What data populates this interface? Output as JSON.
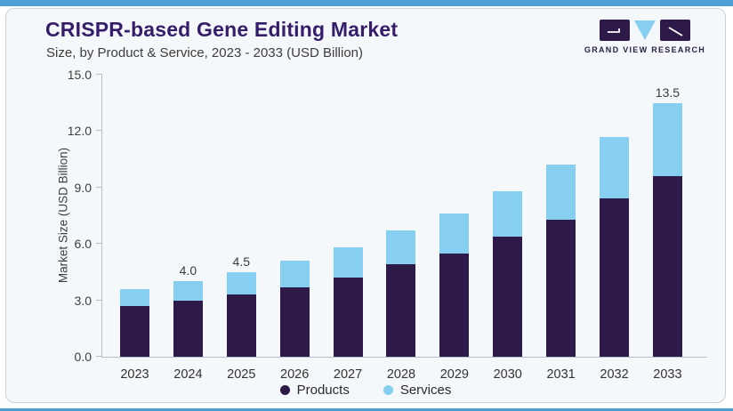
{
  "frame": {
    "accent_color": "#4E9FD3",
    "card_bg": "#F4F8FB",
    "card_border": "#C9D2DB"
  },
  "header": {
    "title": "CRISPR-based Gene Editing Market",
    "subtitle": "Size, by Product & Service, 2023 - 2033 (USD Billion)",
    "title_color": "#351D6B",
    "logo_text": "GRAND VIEW RESEARCH"
  },
  "chart_data": {
    "type": "bar",
    "stacked": true,
    "title": "CRISPR-based Gene Editing Market",
    "subtitle": "Size, by Product & Service, 2023 - 2033 (USD Billion)",
    "categories": [
      "2023",
      "2024",
      "2025",
      "2026",
      "2027",
      "2028",
      "2029",
      "2030",
      "2031",
      "2032",
      "2033"
    ],
    "series": [
      {
        "name": "Products",
        "color": "#2E1A48",
        "values": [
          2.7,
          3.0,
          3.3,
          3.7,
          4.2,
          4.9,
          5.5,
          6.4,
          7.3,
          8.4,
          9.6
        ]
      },
      {
        "name": "Services",
        "color": "#87CFF0",
        "values": [
          0.9,
          1.0,
          1.2,
          1.4,
          1.6,
          1.8,
          2.1,
          2.4,
          2.9,
          3.3,
          3.9
        ]
      }
    ],
    "totals": [
      3.6,
      4.0,
      4.5,
      5.1,
      5.8,
      6.7,
      7.6,
      8.8,
      10.2,
      11.7,
      13.5
    ],
    "bar_labels": [
      "",
      "4.0",
      "4.5",
      "",
      "",
      "",
      "",
      "",
      "",
      "",
      "13.5"
    ],
    "xlabel": "",
    "ylabel": "Market Size (USD Billion)",
    "yticks": [
      "0.0",
      "3.0",
      "6.0",
      "9.0",
      "12.0",
      "15.0"
    ],
    "ylim": [
      0,
      15
    ],
    "grid": false,
    "legend": [
      "Products",
      "Services"
    ],
    "legend_position": "bottom"
  }
}
